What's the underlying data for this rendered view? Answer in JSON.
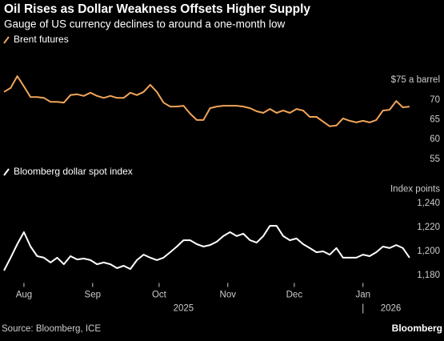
{
  "title": "Oil Rises as Dollar Weakness Offsets Higher Supply",
  "subtitle": "Gauge of US currency declines to around a one-month low",
  "source": "Source: Bloomberg, ICE",
  "brand": "Bloomberg",
  "chart_data": [
    {
      "type": "line",
      "x": [
        0,
        3,
        6,
        9,
        12,
        15,
        18,
        21,
        24,
        27,
        30,
        33,
        36,
        39,
        42,
        45,
        48,
        51,
        54,
        57,
        60,
        63,
        66,
        69,
        72,
        75,
        78,
        81,
        84,
        87,
        90,
        93,
        96,
        99,
        102,
        105,
        108,
        111,
        114,
        117,
        120,
        123,
        126,
        129,
        132,
        135,
        138,
        141,
        144,
        147,
        150,
        153,
        156,
        159,
        162,
        165,
        168,
        171,
        174,
        177,
        180,
        183
      ],
      "xlim": [
        0,
        186
      ],
      "series": [
        {
          "name": "Brent futures",
          "color": "#f0a45a",
          "values": [
            72.0,
            73.0,
            76.0,
            73.4,
            70.7,
            70.7,
            70.5,
            69.5,
            69.5,
            69.3,
            71.2,
            71.4,
            71.0,
            71.8,
            71.0,
            70.5,
            71.0,
            70.5,
            70.5,
            71.8,
            71.2,
            72.0,
            73.8,
            72.0,
            69.3,
            68.3,
            68.3,
            68.5,
            66.5,
            64.9,
            64.9,
            67.9,
            68.3,
            68.5,
            68.5,
            68.5,
            68.3,
            67.9,
            67.1,
            66.7,
            67.7,
            66.7,
            67.3,
            66.7,
            67.7,
            67.3,
            65.7,
            65.7,
            64.5,
            63.3,
            63.5,
            65.3,
            64.7,
            64.3,
            64.7,
            64.3,
            64.9,
            67.3,
            67.5,
            69.7,
            68.1,
            68.3
          ]
        }
      ],
      "ylim": [
        53,
        78
      ],
      "yticks": [
        {
          "value": 75,
          "label": "$75 a barrel"
        },
        70,
        65,
        60,
        55
      ]
    },
    {
      "type": "line",
      "x": [
        0,
        3,
        6,
        9,
        12,
        15,
        18,
        21,
        24,
        27,
        30,
        33,
        36,
        39,
        42,
        45,
        48,
        51,
        54,
        57,
        60,
        63,
        66,
        69,
        72,
        75,
        78,
        81,
        84,
        87,
        90,
        93,
        96,
        99,
        102,
        105,
        108,
        111,
        114,
        117,
        120,
        123,
        126,
        129,
        132,
        135,
        138,
        141,
        144,
        147,
        150,
        153,
        156,
        159,
        162,
        165,
        168,
        171,
        174,
        177,
        180,
        183
      ],
      "xlim": [
        0,
        186
      ],
      "series": [
        {
          "name": "Bloomberg dollar spot index",
          "color": "#ffffff",
          "values": [
            1184.0,
            1194.7,
            1206.0,
            1216.0,
            1204.0,
            1196.0,
            1194.7,
            1190.7,
            1194.7,
            1189.3,
            1196.0,
            1193.3,
            1194.0,
            1192.7,
            1189.3,
            1190.7,
            1189.3,
            1186.0,
            1188.0,
            1185.3,
            1192.7,
            1197.3,
            1194.7,
            1192.7,
            1194.7,
            1199.3,
            1204.0,
            1209.3,
            1209.3,
            1206.0,
            1204.0,
            1205.3,
            1208.0,
            1212.7,
            1216.0,
            1212.7,
            1214.7,
            1209.3,
            1207.3,
            1212.7,
            1221.3,
            1221.3,
            1212.7,
            1209.3,
            1210.7,
            1206.0,
            1202.7,
            1199.3,
            1200.0,
            1197.3,
            1202.7,
            1194.7,
            1194.7,
            1194.7,
            1197.3,
            1196.0,
            1199.3,
            1204.0,
            1202.7,
            1205.3,
            1202.7,
            1194.7
          ]
        }
      ],
      "ylabel": "Index points",
      "ylim": [
        1175,
        1245
      ],
      "yticks": [
        {
          "value": 1240,
          "label": "1,240"
        },
        {
          "value": 1220,
          "label": "1,220"
        },
        {
          "value": 1200,
          "label": "1,200"
        },
        {
          "value": 1180,
          "label": "1,180"
        }
      ],
      "xticks": [
        {
          "value": 9,
          "label": "Aug"
        },
        {
          "value": 40,
          "label": "Sep"
        },
        {
          "value": 70,
          "label": "Oct"
        },
        {
          "value": 101,
          "label": "Nov"
        },
        {
          "value": 131,
          "label": "Dec"
        },
        {
          "value": 162,
          "label": "Jan"
        }
      ],
      "year_labels": [
        {
          "value": 81,
          "label": "2025"
        },
        {
          "value": 162,
          "label": "2026"
        }
      ]
    }
  ]
}
